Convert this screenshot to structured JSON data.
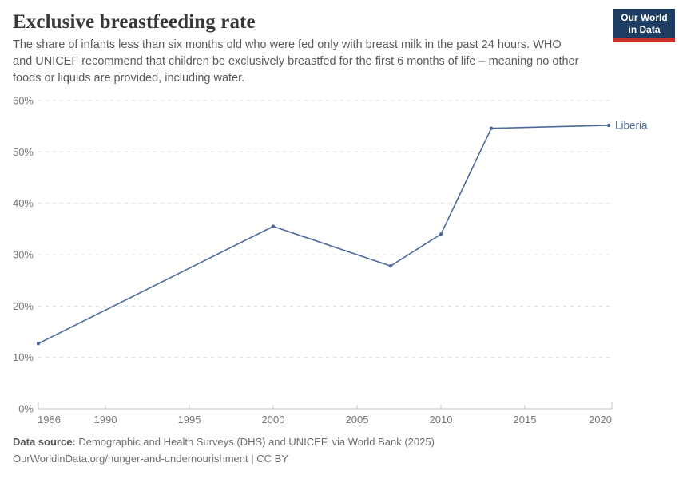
{
  "header": {
    "title": "Exclusive breastfeeding rate",
    "subtitle_lines": [
      "The share of infants less than six months old who were fed only with breast milk in the past 24 hours. WHO",
      "and UNICEF recommend that children be exclusively breastfed for the first 6 months of life – meaning no other",
      "foods or liquids are provided, including water."
    ],
    "logo_lines": [
      "Our World",
      "in Data"
    ]
  },
  "chart_data": {
    "type": "line",
    "title": "Exclusive breastfeeding rate",
    "series": [
      {
        "name": "Liberia",
        "color": "#4C6A9C",
        "x": [
          1986,
          2000,
          2007,
          2010,
          2013,
          2020
        ],
        "values": [
          12.7,
          35.5,
          27.8,
          34.0,
          54.6,
          55.2
        ]
      }
    ],
    "x_ticks": [
      1986,
      1990,
      1995,
      2000,
      2005,
      2010,
      2015,
      2020
    ],
    "y_ticks": [
      0,
      10,
      20,
      30,
      40,
      50,
      60
    ],
    "y_suffix": "%",
    "xlim": [
      1986,
      2020
    ],
    "ylim": [
      0,
      60
    ],
    "grid": "horizontal-dashed",
    "legend": "end-of-line-label"
  },
  "footer": {
    "source_label": "Data source:",
    "source_text": " Demographic and Health Surveys (DHS) and UNICEF, via World Bank (2025)",
    "note": "OurWorldinData.org/hunger-and-undernourishment | CC BY"
  },
  "colors": {
    "line": "#4C6A9C",
    "grid": "#dcdcdc",
    "axis": "#c6c6c6",
    "tick_label": "#787878",
    "title": "#383838",
    "subtitle": "#5b5b5b",
    "footer": "#6e6e6e",
    "logo_bg": "#1d3d63",
    "logo_bar": "#c8322b"
  }
}
